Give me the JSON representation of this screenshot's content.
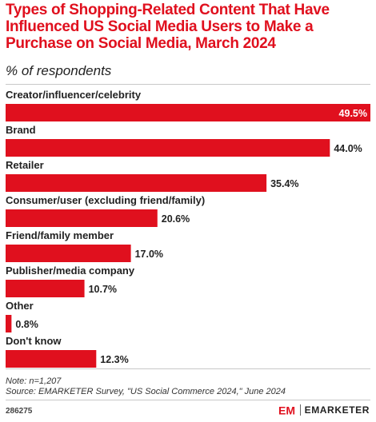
{
  "header": {
    "title": "Types of Shopping-Related Content That Have Influenced US Social Media Users to Make a Purchase on Social Media, March 2024",
    "subtitle": "% of respondents"
  },
  "footer": {
    "note": "Note: n=1,207",
    "source": "Source: EMARKETER Survey, \"US Social Commerce 2024,\" June 2024",
    "chart_id": "286275",
    "logo_mark": "EM",
    "brand": "EMARKETER"
  },
  "colors": {
    "accent": "#e0101e",
    "text": "#222222",
    "rule": "#c8c8c8"
  },
  "chart_data": {
    "type": "bar",
    "orientation": "horizontal",
    "title": "Types of Shopping-Related Content That Have Influenced US Social Media Users to Make a Purchase on Social Media, March 2024",
    "subtitle": "% of respondents",
    "categories": [
      "Creator/influencer/celebrity",
      "Brand",
      "Retailer",
      "Consumer/user (excluding friend/family)",
      "Friend/family member",
      "Publisher/media company",
      "Other",
      "Don't know"
    ],
    "values": [
      49.5,
      44.0,
      35.4,
      20.6,
      17.0,
      10.7,
      0.8,
      12.3
    ],
    "value_labels": [
      "49.5%",
      "44.0%",
      "35.4%",
      "20.6%",
      "17.0%",
      "10.7%",
      "0.8%",
      "12.3%"
    ],
    "xlim": [
      0,
      49.5
    ],
    "grid": false,
    "legend": "none"
  }
}
